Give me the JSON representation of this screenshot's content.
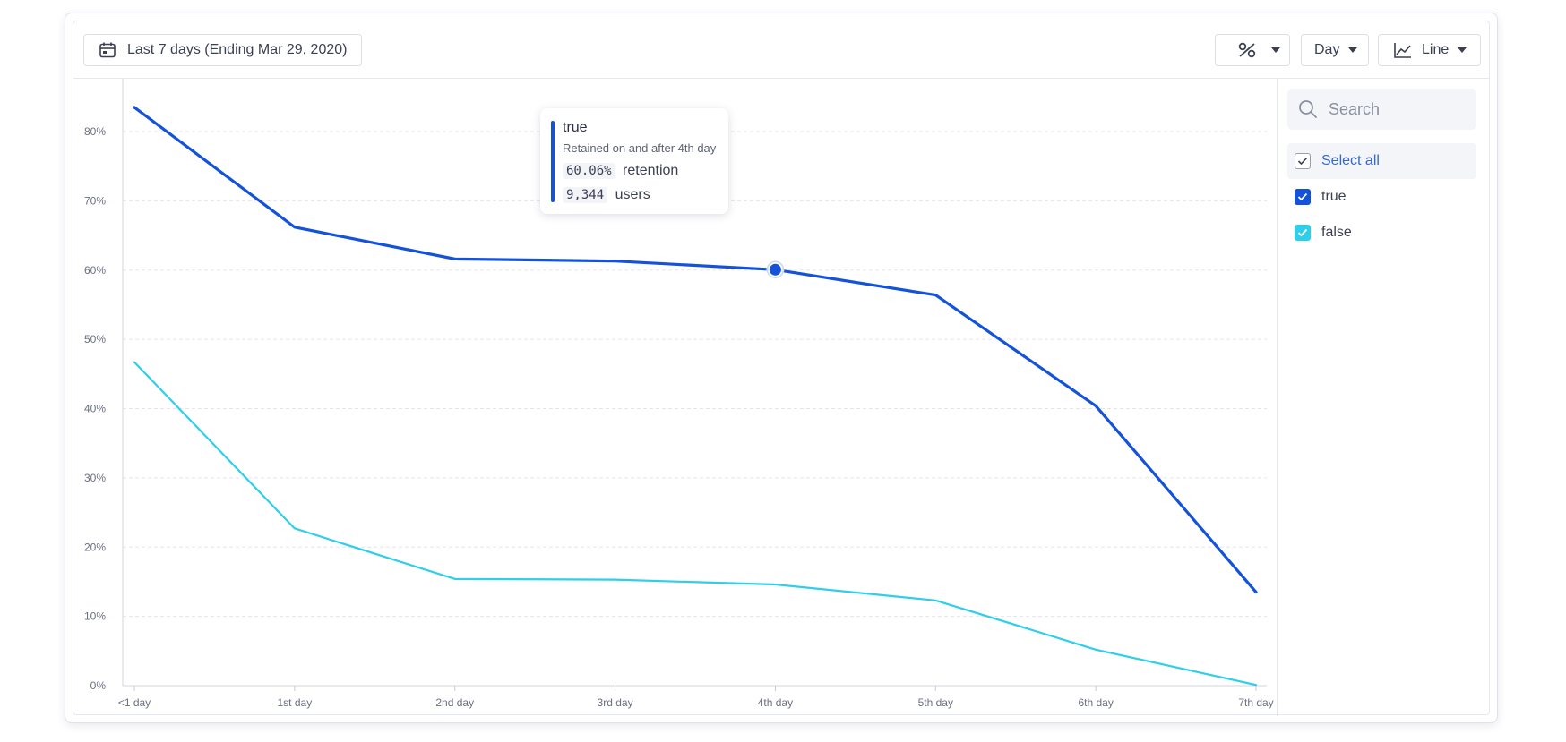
{
  "toolbar": {
    "date_range_label": "Last 7 days (Ending Mar 29, 2020)",
    "unit_label": "Day",
    "chart_type_label": "Line",
    "icons": {
      "date": "calendar-icon",
      "percent": "percent-icon",
      "line": "line-chart-icon"
    }
  },
  "sidebar": {
    "search_placeholder": "Search",
    "select_all_label": "Select all",
    "items": [
      {
        "label": "true",
        "color": "#1453d9",
        "checked": true
      },
      {
        "label": "false",
        "color": "#2ecfe8",
        "checked": true
      }
    ]
  },
  "tooltip": {
    "title": "true",
    "subtitle": "Retained on and after 4th day",
    "retention_value": "60.06%",
    "retention_label": "retention",
    "users_value": "9,344",
    "users_label": "users",
    "color": "#1453d9"
  },
  "chart_data": {
    "type": "line",
    "categories": [
      "<1 day",
      "1st day",
      "2nd day",
      "3rd day",
      "4th day",
      "5th day",
      "6th day",
      "7th day"
    ],
    "series": [
      {
        "name": "true",
        "color": "#1453d9",
        "values": [
          83.5,
          66.2,
          61.6,
          61.3,
          60.06,
          56.4,
          40.4,
          13.5
        ]
      },
      {
        "name": "false",
        "color": "#2ecfe8",
        "values": [
          46.7,
          22.7,
          15.4,
          15.3,
          14.6,
          12.3,
          5.2,
          0.1
        ]
      }
    ],
    "y_ticks": [
      "0%",
      "10%",
      "20%",
      "30%",
      "40%",
      "50%",
      "60%",
      "70%",
      "80%"
    ],
    "ylim": [
      0,
      80
    ],
    "grid": true,
    "highlight": {
      "series": 0,
      "index": 4
    }
  }
}
